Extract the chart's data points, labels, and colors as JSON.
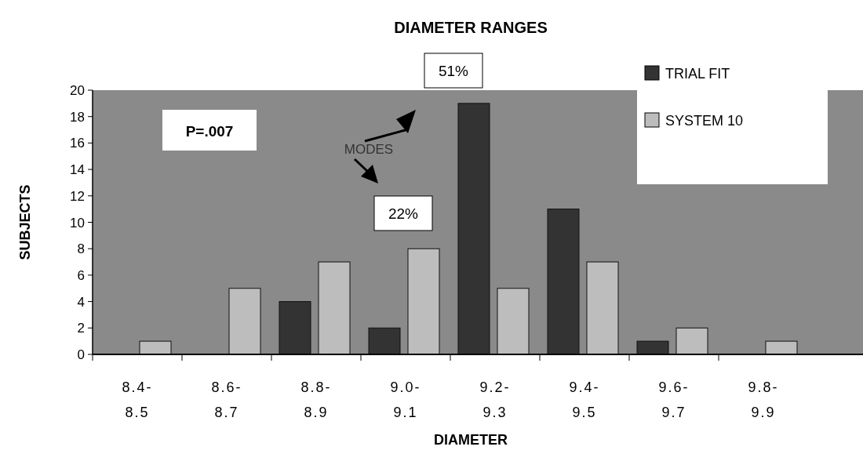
{
  "chart_data": {
    "type": "bar",
    "title": "DIAMETER RANGES",
    "xlabel": "DIAMETER",
    "ylabel": "SUBJECTS",
    "categories": [
      "8.4-8.5",
      "8.6-8.7",
      "8.8-8.9",
      "9.0-9.1",
      "9.2-9.3",
      "9.4-9.5",
      "9.6-9.7",
      "9.8-9.9"
    ],
    "series": [
      {
        "name": "TRIAL FIT",
        "color": "#333333",
        "values": [
          0,
          0,
          4,
          2,
          19,
          11,
          1,
          0
        ]
      },
      {
        "name": "SYSTEM 10",
        "color": "#bdbdbd",
        "values": [
          1,
          5,
          7,
          8,
          5,
          7,
          2,
          1
        ]
      }
    ],
    "ylim": [
      0,
      20
    ],
    "yticks": [
      0,
      2,
      4,
      6,
      8,
      10,
      12,
      14,
      16,
      18,
      20
    ],
    "legend": "top right",
    "annotations": [
      "P=.007",
      "MODES",
      "51%",
      "22%"
    ]
  }
}
